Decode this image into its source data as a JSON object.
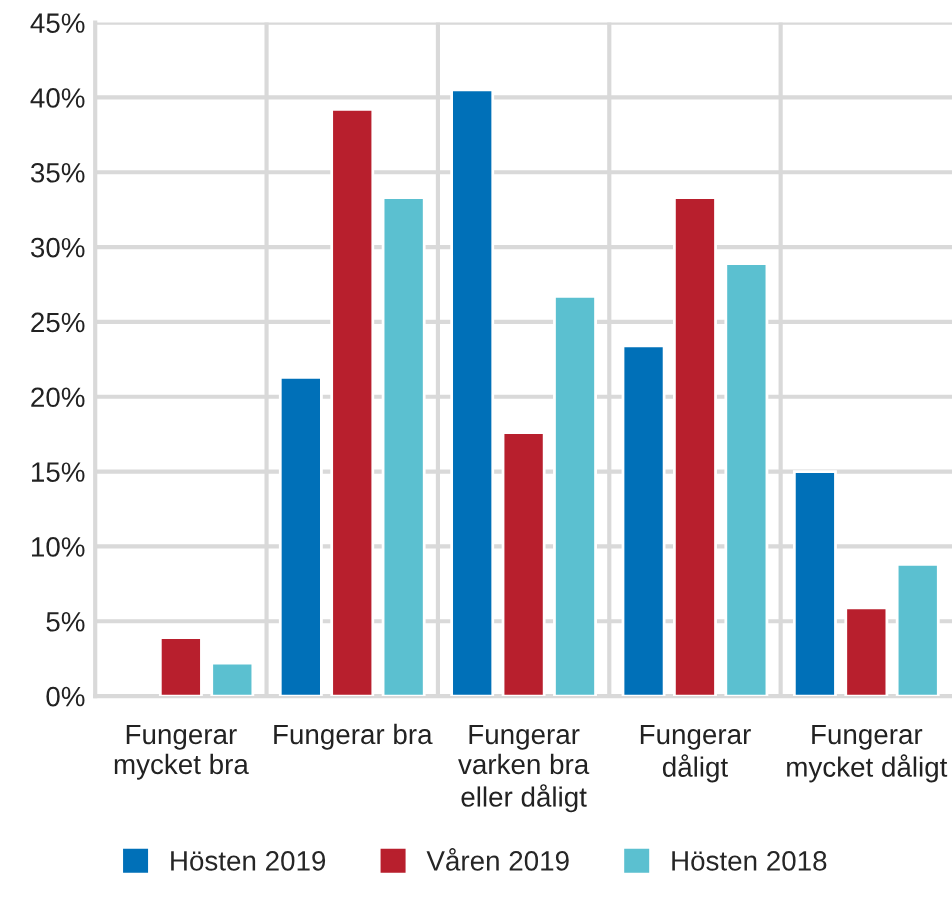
{
  "chart_data": {
    "type": "bar",
    "categories": [
      "Fungerar\nmycket bra",
      "Fungerar bra",
      "Fungerar\nvarken bra\neller dåligt",
      "Fungerar\ndåligt",
      "Fungerar\nmycket dåligt"
    ],
    "series": [
      {
        "name": "Hösten 2019",
        "color": "#0070b8",
        "values": [
          null,
          21.3,
          40.5,
          23.4,
          15.0
        ]
      },
      {
        "name": "Våren 2019",
        "color": "#b81f2d",
        "values": [
          3.9,
          39.2,
          17.6,
          33.3,
          5.9
        ]
      },
      {
        "name": "Hösten 2018",
        "color": "#5bc0d0",
        "values": [
          2.2,
          33.3,
          26.7,
          28.9,
          8.8
        ]
      }
    ],
    "ylim": [
      0,
      45
    ],
    "yticks": [
      {
        "value": 0,
        "label": "0%"
      },
      {
        "value": 5,
        "label": "5%"
      },
      {
        "value": 10,
        "label": "10%"
      },
      {
        "value": 15,
        "label": "15%"
      },
      {
        "value": 20,
        "label": "20%"
      },
      {
        "value": 25,
        "label": "25%"
      },
      {
        "value": 30,
        "label": "30%"
      },
      {
        "value": 35,
        "label": "35%"
      },
      {
        "value": 40,
        "label": "40%"
      },
      {
        "value": 45,
        "label": "45%"
      }
    ],
    "grid": true,
    "legend": "bottom"
  }
}
